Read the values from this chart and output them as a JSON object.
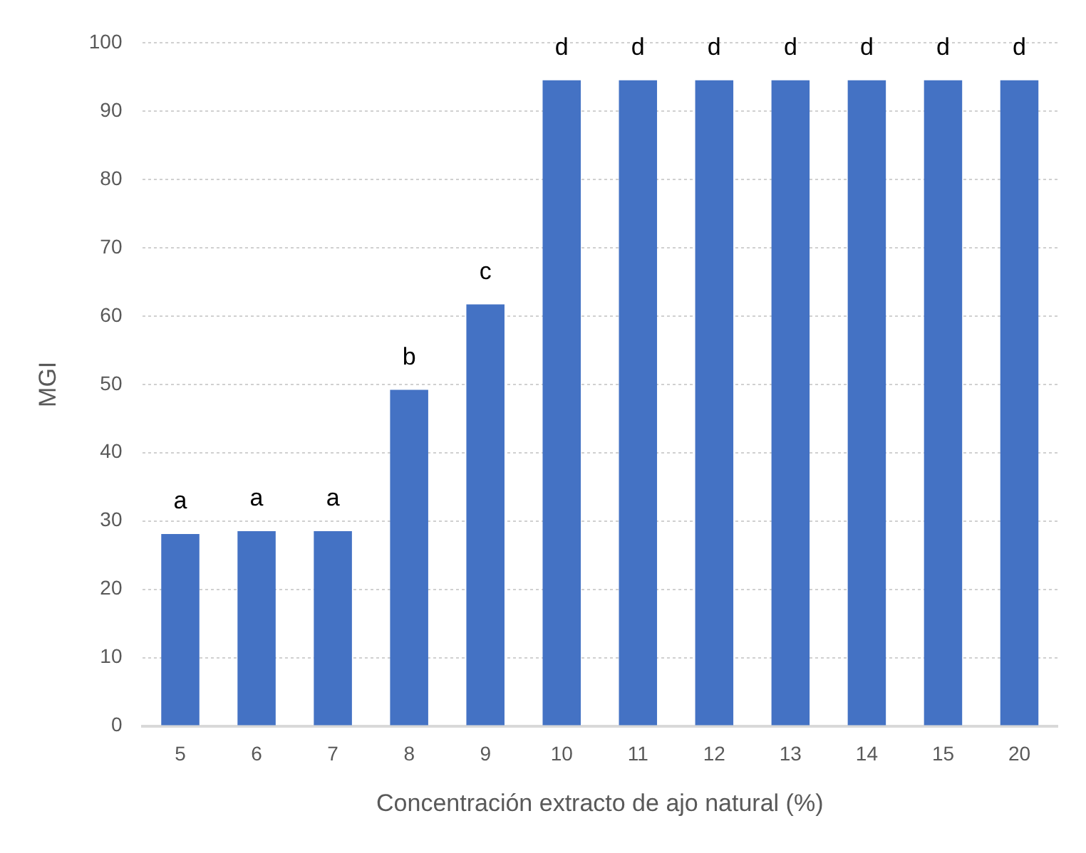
{
  "chart_data": {
    "type": "bar",
    "xlabel": "Concentración extracto de ajo natural (%)",
    "ylabel": "MGI",
    "categories": [
      "5",
      "6",
      "7",
      "8",
      "9",
      "10",
      "11",
      "12",
      "13",
      "14",
      "15",
      "20"
    ],
    "values": [
      28.1,
      28.5,
      28.5,
      49.2,
      61.7,
      94.5,
      94.5,
      94.5,
      94.5,
      94.5,
      94.5,
      94.5
    ],
    "color": "#4472c4",
    "ylim": [
      0,
      100
    ],
    "yticks": [
      0,
      10,
      20,
      30,
      40,
      50,
      60,
      70,
      80,
      90,
      100
    ],
    "grid": "y",
    "legend": false,
    "annotations": [
      {
        "text": "a",
        "x": "5",
        "y": 28.1
      },
      {
        "text": "a",
        "x": "6",
        "y": 28.5
      },
      {
        "text": "a",
        "x": "7",
        "y": 28.5
      },
      {
        "text": "b",
        "x": "8",
        "y": 49.2
      },
      {
        "text": "c",
        "x": "9",
        "y": 61.7
      },
      {
        "text": "d",
        "x": "10",
        "y": 94.5
      },
      {
        "text": "d",
        "x": "11",
        "y": 94.5
      },
      {
        "text": "d",
        "x": "12",
        "y": 94.5
      },
      {
        "text": "d",
        "x": "13",
        "y": 94.5
      },
      {
        "text": "d",
        "x": "14",
        "y": 94.5
      },
      {
        "text": "d",
        "x": "15",
        "y": 94.5
      },
      {
        "text": "d",
        "x": "20",
        "y": 94.5
      }
    ]
  }
}
